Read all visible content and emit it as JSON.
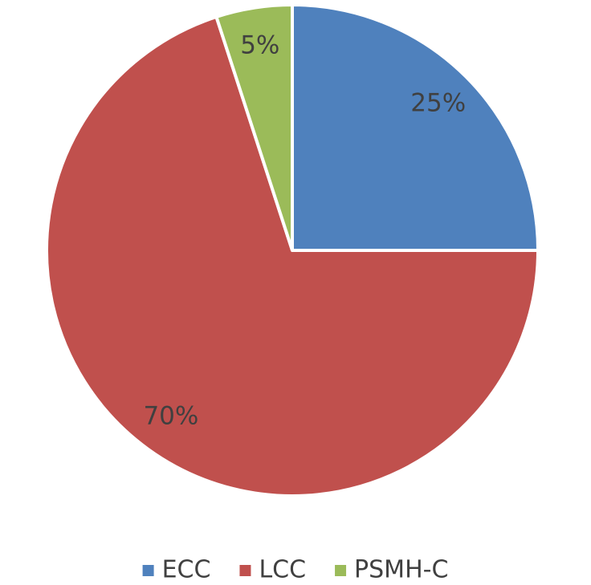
{
  "chart_data": {
    "type": "pie",
    "categories": [
      "ECC",
      "LCC",
      "PSMH-C"
    ],
    "values": [
      25,
      70,
      5
    ],
    "value_labels": [
      "25%",
      "70%",
      "5%"
    ],
    "colors": [
      "#4f81bd",
      "#c0504d",
      "#9bbb59"
    ],
    "legend": "bottom"
  }
}
